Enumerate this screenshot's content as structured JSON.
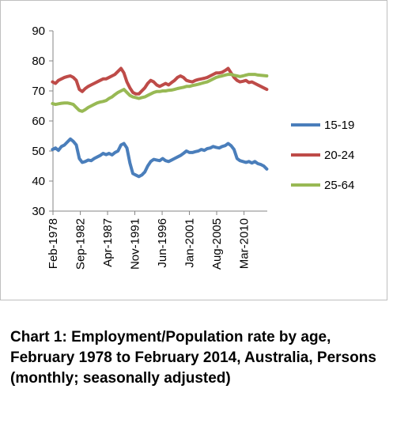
{
  "caption": "Chart 1: Employment/Population rate by age, February 1978 to February 2014, Australia, Persons (monthly; seasonally adjusted)",
  "chart_data": {
    "type": "line",
    "title": "Chart 1: Employment/Population rate by age, February 1978 to February 2014, Australia, Persons (monthly; seasonally adjusted)",
    "xlabel": "",
    "ylabel": "",
    "ylim": [
      30,
      90
    ],
    "yticks": [
      30,
      40,
      50,
      60,
      70,
      80,
      90
    ],
    "xlim": [
      1978.08,
      2014.08
    ],
    "x_tick_labels": [
      "Feb-1978",
      "Sep-1982",
      "Apr-1987",
      "Nov-1991",
      "Jun-1996",
      "Jan-2001",
      "Aug-2005",
      "Mar-2010"
    ],
    "x_tick_values": [
      1978.08,
      1982.67,
      1987.25,
      1991.83,
      1996.42,
      2001.0,
      2005.58,
      2010.17
    ],
    "grid": false,
    "legend_position": "right",
    "x": [
      1978.0,
      1978.5,
      1979.0,
      1979.5,
      1980.0,
      1980.5,
      1981.0,
      1981.5,
      1982.0,
      1982.5,
      1983.0,
      1983.5,
      1984.0,
      1984.5,
      1985.0,
      1985.5,
      1986.0,
      1986.5,
      1987.0,
      1987.5,
      1988.0,
      1988.5,
      1989.0,
      1989.5,
      1990.0,
      1990.5,
      1991.0,
      1991.5,
      1992.0,
      1992.5,
      1993.0,
      1993.5,
      1994.0,
      1994.5,
      1995.0,
      1995.5,
      1996.0,
      1996.5,
      1997.0,
      1997.5,
      1998.0,
      1998.5,
      1999.0,
      1999.5,
      2000.0,
      2000.5,
      2001.0,
      2001.5,
      2002.0,
      2002.5,
      2003.0,
      2003.5,
      2004.0,
      2004.5,
      2005.0,
      2005.5,
      2006.0,
      2006.5,
      2007.0,
      2007.5,
      2008.0,
      2008.5,
      2009.0,
      2009.5,
      2010.0,
      2010.5,
      2011.0,
      2011.5,
      2012.0,
      2012.5,
      2013.0,
      2013.5,
      2014.0
    ],
    "series": [
      {
        "name": "15-19",
        "color": "#4a7ebb",
        "values": [
          50.5,
          51.0,
          50.2,
          51.5,
          52.0,
          53.0,
          54.0,
          53.2,
          52.0,
          47.5,
          46.2,
          46.5,
          47.0,
          46.8,
          47.5,
          48.0,
          48.5,
          49.2,
          48.8,
          49.2,
          48.7,
          49.5,
          50.0,
          52.0,
          52.5,
          51.0,
          46.0,
          42.5,
          42.0,
          41.5,
          42.0,
          43.0,
          45.0,
          46.5,
          47.2,
          47.0,
          46.8,
          47.5,
          46.8,
          46.5,
          47.0,
          47.5,
          48.0,
          48.5,
          49.2,
          50.0,
          49.5,
          49.5,
          49.8,
          50.0,
          50.5,
          50.2,
          50.8,
          51.0,
          51.5,
          51.2,
          51.0,
          51.5,
          51.8,
          52.5,
          51.8,
          50.5,
          47.5,
          46.8,
          46.5,
          46.2,
          46.5,
          46.0,
          46.5,
          45.8,
          45.5,
          45.0,
          44.0
        ]
      },
      {
        "name": "20-24",
        "color": "#be4b48",
        "values": [
          73.0,
          72.5,
          73.5,
          74.0,
          74.5,
          74.8,
          75.0,
          74.5,
          73.5,
          70.5,
          69.8,
          70.8,
          71.5,
          72.0,
          72.5,
          73.0,
          73.5,
          74.0,
          74.0,
          74.5,
          75.0,
          75.5,
          76.5,
          77.5,
          76.0,
          73.0,
          71.0,
          69.5,
          69.0,
          69.0,
          70.0,
          71.0,
          72.5,
          73.5,
          73.0,
          72.0,
          71.5,
          72.0,
          72.5,
          72.0,
          72.8,
          73.5,
          74.5,
          75.0,
          74.5,
          73.5,
          73.2,
          73.0,
          73.5,
          73.8,
          74.0,
          74.2,
          74.5,
          75.0,
          75.5,
          76.0,
          76.0,
          76.2,
          76.8,
          77.5,
          76.0,
          74.5,
          73.5,
          73.0,
          73.2,
          73.5,
          72.8,
          73.0,
          72.5,
          72.0,
          71.5,
          71.0,
          70.5
        ]
      },
      {
        "name": "25-64",
        "color": "#98b954",
        "values": [
          65.8,
          65.5,
          65.7,
          65.9,
          66.0,
          66.0,
          65.8,
          65.5,
          64.5,
          63.5,
          63.2,
          63.8,
          64.5,
          65.0,
          65.5,
          66.0,
          66.3,
          66.5,
          66.8,
          67.5,
          68.0,
          68.8,
          69.5,
          70.0,
          70.5,
          69.5,
          68.5,
          68.0,
          67.8,
          67.5,
          67.8,
          68.0,
          68.5,
          69.0,
          69.5,
          69.8,
          69.8,
          70.0,
          70.0,
          70.2,
          70.3,
          70.5,
          70.8,
          71.0,
          71.2,
          71.5,
          71.5,
          71.8,
          72.0,
          72.2,
          72.5,
          72.8,
          73.0,
          73.5,
          74.0,
          74.5,
          74.8,
          75.0,
          75.3,
          75.5,
          75.5,
          75.2,
          75.0,
          74.8,
          75.0,
          75.3,
          75.5,
          75.5,
          75.5,
          75.3,
          75.2,
          75.1,
          75.0
        ]
      }
    ]
  }
}
